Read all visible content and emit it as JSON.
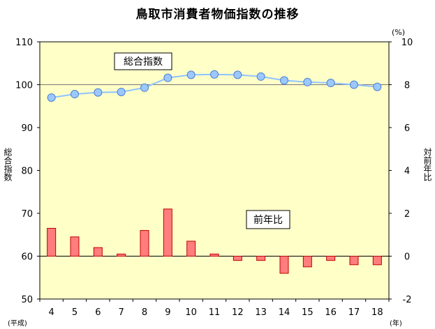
{
  "chart_data": {
    "type": "bar+line",
    "title": "鳥取市消費者物価指数の推移",
    "x_categories": [
      "4",
      "5",
      "6",
      "7",
      "8",
      "9",
      "10",
      "11",
      "12",
      "13",
      "14",
      "15",
      "16",
      "17",
      "18"
    ],
    "x_start_label": "(平成)",
    "x_end_label": "(年)",
    "left_axis": {
      "label": "総合指数",
      "ylim": [
        50,
        110
      ],
      "ticks": [
        "50",
        "60",
        "70",
        "80",
        "90",
        "100",
        "110"
      ]
    },
    "right_axis": {
      "label": "対前年比",
      "unit_label": "(%)",
      "ylim": [
        -2,
        10
      ],
      "ticks": [
        "-2",
        "0",
        "2",
        "4",
        "6",
        "8",
        "10"
      ]
    },
    "series": [
      {
        "name": "総合指数",
        "kind": "line",
        "axis": "left",
        "color": "#8fc3ff",
        "values": [
          97.0,
          97.8,
          98.2,
          98.3,
          99.3,
          101.6,
          102.3,
          102.4,
          102.3,
          101.9,
          101.0,
          100.6,
          100.4,
          100.0,
          99.5
        ]
      },
      {
        "name": "前年比",
        "kind": "bar",
        "axis": "right",
        "color": "#ff7d7d",
        "values": [
          1.3,
          0.9,
          0.4,
          0.1,
          1.2,
          2.2,
          0.7,
          0.1,
          -0.2,
          -0.2,
          -0.8,
          -0.5,
          -0.2,
          -0.4,
          -0.4
        ]
      }
    ],
    "reference_line_left": 100,
    "grid": false
  }
}
